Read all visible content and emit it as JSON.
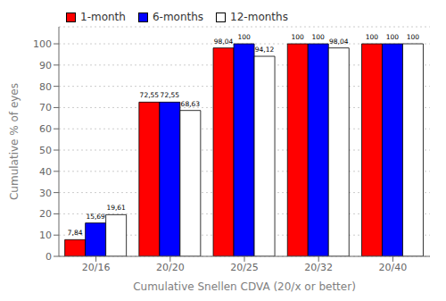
{
  "chart_data": {
    "type": "bar",
    "categories": [
      "20/16",
      "20/20",
      "20/25",
      "20/32",
      "20/40"
    ],
    "series": [
      {
        "name": "1-month",
        "color": "#ff0000",
        "values": [
          7.84,
          72.55,
          98.04,
          100,
          100
        ],
        "value_labels": [
          "7,84",
          "72,55",
          "98,04",
          "100",
          "100"
        ]
      },
      {
        "name": "6-months",
        "color": "#0000ff",
        "values": [
          15.69,
          72.55,
          100,
          100,
          100
        ],
        "value_labels": [
          "15,69",
          "72,55",
          "100",
          "100",
          "100"
        ]
      },
      {
        "name": "12-months",
        "color": "#ffffff",
        "values": [
          19.61,
          68.63,
          94.12,
          98.04,
          100
        ],
        "value_labels": [
          "19,61",
          "68,63",
          "94,12",
          "98,04",
          "100"
        ]
      }
    ],
    "xlabel": "Cumulative Snellen CDVA (20/x or better)",
    "ylabel": "Cumulative % of eyes",
    "ylim": [
      0,
      108
    ],
    "yticks": [
      0,
      10,
      20,
      30,
      40,
      50,
      60,
      70,
      80,
      90,
      100
    ],
    "grid": true,
    "legend": "upper left",
    "data_labels": true
  }
}
